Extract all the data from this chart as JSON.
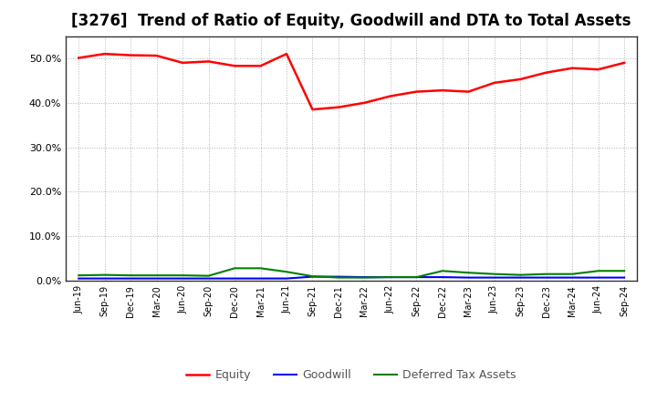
{
  "title": "[3276]  Trend of Ratio of Equity, Goodwill and DTA to Total Assets",
  "x_labels": [
    "Jun-19",
    "Sep-19",
    "Dec-19",
    "Mar-20",
    "Jun-20",
    "Sep-20",
    "Dec-20",
    "Mar-21",
    "Jun-21",
    "Sep-21",
    "Dec-21",
    "Mar-22",
    "Jun-22",
    "Sep-22",
    "Dec-22",
    "Mar-23",
    "Jun-23",
    "Sep-23",
    "Dec-23",
    "Mar-24",
    "Jun-24",
    "Sep-24"
  ],
  "equity": [
    50.1,
    51.0,
    50.7,
    50.6,
    49.0,
    49.3,
    48.3,
    48.3,
    51.0,
    38.5,
    39.0,
    40.0,
    41.5,
    42.5,
    42.8,
    42.5,
    44.5,
    45.3,
    46.8,
    47.8,
    47.5,
    49.0
  ],
  "goodwill": [
    0.5,
    0.5,
    0.5,
    0.5,
    0.5,
    0.5,
    0.5,
    0.5,
    0.5,
    0.9,
    0.9,
    0.8,
    0.8,
    0.8,
    0.8,
    0.7,
    0.7,
    0.7,
    0.7,
    0.7,
    0.7,
    0.7
  ],
  "dta": [
    1.2,
    1.3,
    1.2,
    1.2,
    1.2,
    1.1,
    2.8,
    2.8,
    2.0,
    1.0,
    0.7,
    0.7,
    0.8,
    0.8,
    2.2,
    1.8,
    1.5,
    1.3,
    1.5,
    1.5,
    2.2,
    2.2
  ],
  "equity_color": "#FF0000",
  "goodwill_color": "#0000FF",
  "dta_color": "#008000",
  "ylim": [
    0,
    55
  ],
  "yticks": [
    0,
    10,
    20,
    30,
    40,
    50
  ],
  "background_color": "#FFFFFF",
  "plot_bg_color": "#FFFFFF",
  "grid_color": "#AAAAAA",
  "title_fontsize": 12,
  "legend_labels": [
    "Equity",
    "Goodwill",
    "Deferred Tax Assets"
  ],
  "legend_text_color": "#555555"
}
